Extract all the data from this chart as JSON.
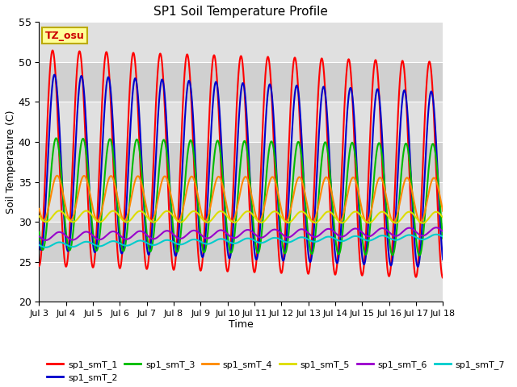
{
  "title": "SP1 Soil Temperature Profile",
  "xlabel": "Time",
  "ylabel": "Soil Temperature (C)",
  "xlim_days": [
    3,
    18
  ],
  "ylim": [
    20,
    55
  ],
  "yticks": [
    20,
    25,
    30,
    35,
    40,
    45,
    50,
    55
  ],
  "xtick_labels": [
    "Jul 3",
    "Jul 4",
    "Jul 5",
    "Jul 6",
    "Jul 7",
    "Jul 8",
    "Jul 9",
    "Jul 10",
    "Jul 11",
    "Jul 12",
    "Jul 13",
    "Jul 14",
    "Jul 15",
    "Jul 16",
    "Jul 17",
    "Jul 18"
  ],
  "legend_label": "TZ_osu",
  "legend_box_color": "#ffff99",
  "legend_box_edge": "#bbaa00",
  "series_colors": {
    "sp1_smT_1": "#ff0000",
    "sp1_smT_2": "#0000cc",
    "sp1_smT_3": "#00bb00",
    "sp1_smT_4": "#ff8800",
    "sp1_smT_5": "#dddd00",
    "sp1_smT_6": "#9900cc",
    "sp1_smT_7": "#00cccc"
  },
  "band_colors": [
    "#e0e0e0",
    "#d0d0d0"
  ],
  "bg_color": "#e0e0e0",
  "grid_color": "#ffffff",
  "num_days": 16,
  "base_day": 3,
  "series": {
    "sp1_smT_1": {
      "amp": 13.5,
      "mean": 38.0,
      "phase": 0.25,
      "trend": -0.1
    },
    "sp1_smT_2": {
      "amp": 11.0,
      "mean": 37.5,
      "phase": 0.32,
      "trend": -0.15
    },
    "sp1_smT_3": {
      "amp": 7.0,
      "mean": 33.5,
      "phase": 0.38,
      "trend": -0.05
    },
    "sp1_smT_4": {
      "amp": 2.8,
      "mean": 33.0,
      "phase": 0.42,
      "trend": -0.02
    },
    "sp1_smT_5": {
      "amp": 0.7,
      "mean": 30.7,
      "phase": 0.5,
      "trend": -0.01
    },
    "sp1_smT_6": {
      "amp": 0.5,
      "mean": 28.2,
      "phase": 0.5,
      "trend": 0.04
    },
    "sp1_smT_7": {
      "amp": 0.3,
      "mean": 27.1,
      "phase": 0.5,
      "trend": 0.07
    }
  }
}
